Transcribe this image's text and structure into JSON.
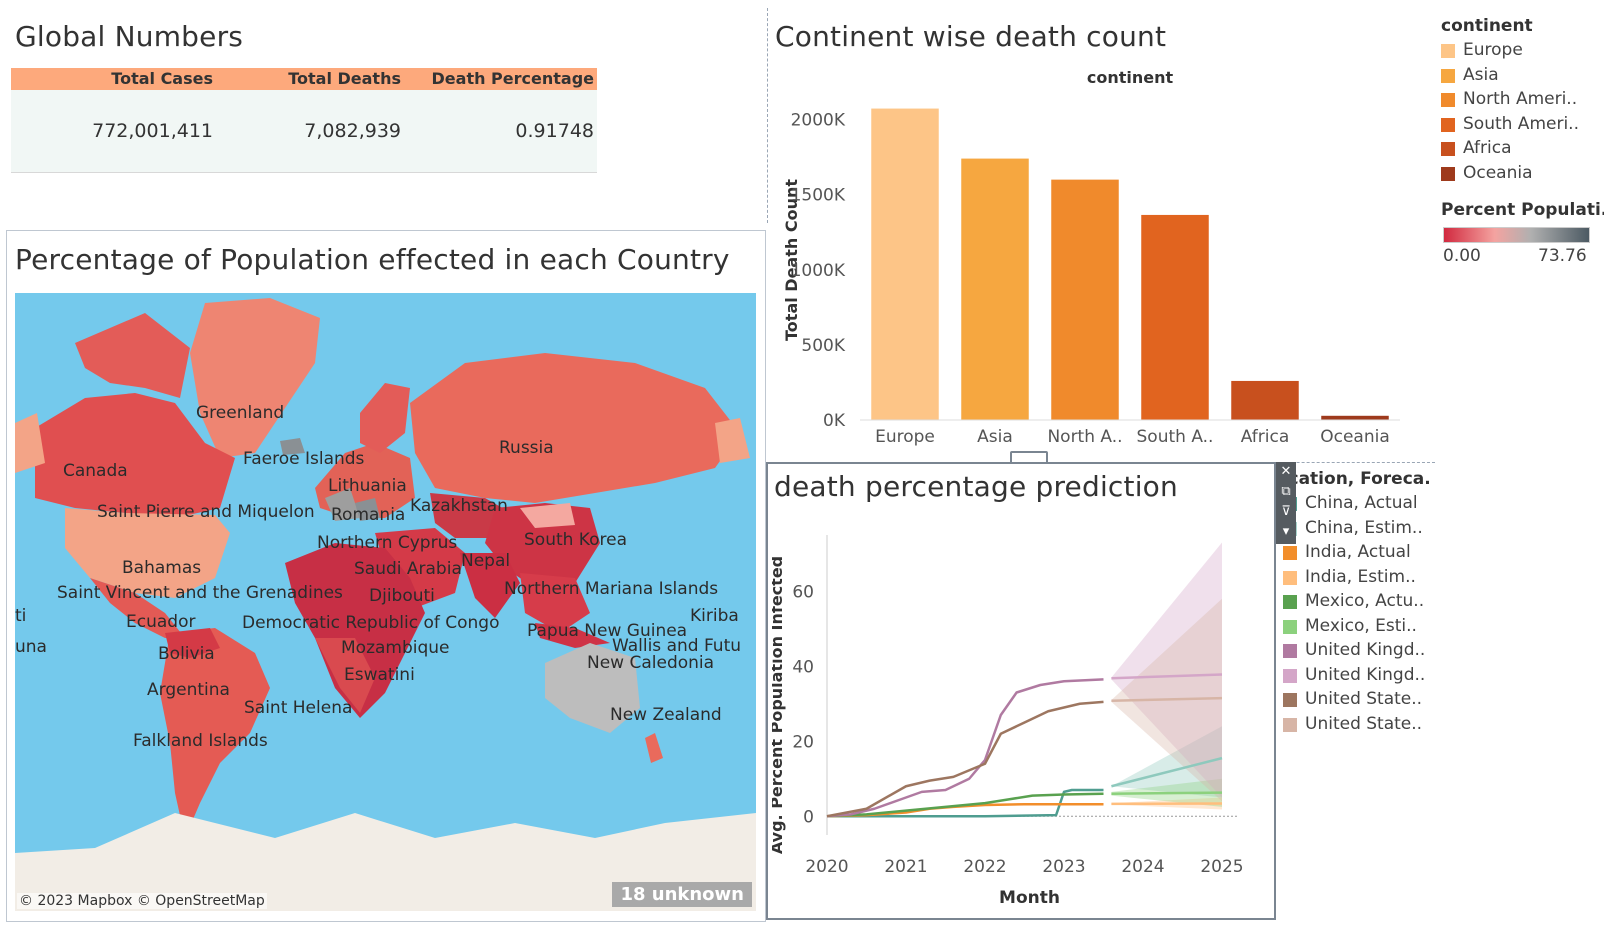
{
  "global_numbers": {
    "title": "Global Numbers",
    "headers": [
      "Total Cases",
      "Total Deaths",
      "Death Percentage"
    ],
    "values": [
      "772,001,411",
      "7,082,939",
      "0.91748"
    ],
    "header_color": "#fda97c"
  },
  "map_panel": {
    "title": "Percentage of Population effected in each Country",
    "attribution": "© 2023 Mapbox © OpenStreetMap",
    "unknown_badge": "18 unknown",
    "labels": [
      "Greenland",
      "Canada",
      "Faeroe Islands",
      "Lithuania",
      "Russia",
      "Romania",
      "Kazakhstan",
      "Saint Pierre and Miquelon",
      "Northern Cyprus",
      "South Korea",
      "Nepal",
      "Saudi Arabia",
      "Bahamas",
      "Saint Vincent and the Grenadines",
      "Djibouti",
      "Northern Mariana Islands",
      "ti",
      "Ecuador",
      "Democratic Republic of Congo",
      "Kiriba",
      "Papua New Guinea",
      "una",
      "Wallis and Futu",
      "Bolivia",
      "Mozambique",
      "New Caledonia",
      "Eswatini",
      "Argentina",
      "Saint Helena",
      "New Zealand",
      "Falkland Islands"
    ]
  },
  "bar_panel": {
    "title": "Continent wise death count"
  },
  "continent_legend": {
    "title": "continent",
    "items": [
      {
        "label": "Europe",
        "color": "#fdc587"
      },
      {
        "label": "Asia",
        "color": "#f6a740"
      },
      {
        "label": "North Ameri..",
        "color": "#f08a2c"
      },
      {
        "label": "South Ameri..",
        "color": "#e1641f"
      },
      {
        "label": "Africa",
        "color": "#c8501e"
      },
      {
        "label": "Oceania",
        "color": "#9e3a1c"
      }
    ]
  },
  "percent_legend": {
    "title": "Percent Populati..",
    "min": "0.00",
    "max": "73.76",
    "colors": [
      "#d1293f",
      "#f4a3a0",
      "#b0b0b0",
      "#4c5a63"
    ]
  },
  "forecast_legend": {
    "title": "Location, Foreca..",
    "items": [
      {
        "label": "China, Actual",
        "color": "#4f9d90"
      },
      {
        "label": "China, Estim..",
        "color": "#a8d4cd"
      },
      {
        "label": "India, Actual",
        "color": "#f28e2b"
      },
      {
        "label": "India, Estim..",
        "color": "#ffbe7d"
      },
      {
        "label": "Mexico, Actu..",
        "color": "#59a14f"
      },
      {
        "label": "Mexico, Esti..",
        "color": "#8cd17d"
      },
      {
        "label": "United Kingd..",
        "color": "#b07aa1"
      },
      {
        "label": "United Kingd..",
        "color": "#d4a6c8"
      },
      {
        "label": "United State..",
        "color": "#9d7660"
      },
      {
        "label": "United State..",
        "color": "#d7b5a6"
      }
    ]
  },
  "prediction_panel": {
    "title": "death percentage prediction"
  },
  "chart_data": [
    {
      "type": "bar",
      "title": "Continent wise death count",
      "xlabel": "continent",
      "ylabel": "Total Death Count",
      "categories": [
        "Europe",
        "Asia",
        "North A..",
        "South A..",
        "Africa",
        "Oceania"
      ],
      "values": [
        2073000,
        1740000,
        1600000,
        1365000,
        260000,
        28000
      ],
      "colors": [
        "#fdc587",
        "#f6a740",
        "#f08a2c",
        "#e1641f",
        "#c8501e",
        "#9e3a1c"
      ],
      "yticks": [
        0,
        500000,
        1000000,
        1500000,
        2000000
      ],
      "ytick_labels": [
        "0K",
        "500K",
        "1000K",
        "1500K",
        "2000K"
      ],
      "ylim": [
        0,
        2130000
      ],
      "grid": false
    },
    {
      "type": "line",
      "title": "death percentage prediction",
      "xlabel": "Month",
      "ylabel": "Avg. Percent Population Infected",
      "xticks": [
        2020,
        2021,
        2022,
        2023,
        2024,
        2025
      ],
      "yticks": [
        0,
        20,
        40,
        60
      ],
      "xlim": [
        2020,
        2025
      ],
      "ylim": [
        -5,
        75
      ],
      "series": [
        {
          "name": "China, Actual",
          "color": "#4f9d90",
          "x": [
            2020,
            2021,
            2022,
            2022.9,
            2023.0,
            2023.1,
            2023.5
          ],
          "y": [
            0,
            0,
            0,
            0.3,
            6.5,
            7,
            7
          ]
        },
        {
          "name": "China, Estim..",
          "color": "#8ec9bd",
          "x": [
            2023.6,
            2025
          ],
          "y": [
            8,
            15.5
          ],
          "band_upper": [
            8,
            24
          ],
          "band_lower": [
            8,
            5
          ]
        },
        {
          "name": "India, Actual",
          "color": "#f28e2b",
          "x": [
            2020,
            2020.5,
            2021,
            2021.3,
            2021.6,
            2022,
            2022.5,
            2023,
            2023.5
          ],
          "y": [
            0,
            0.3,
            1,
            2,
            2.5,
            3,
            3.2,
            3.2,
            3.2
          ]
        },
        {
          "name": "India, Estim..",
          "color": "#ffbe7d",
          "x": [
            2023.6,
            2025
          ],
          "y": [
            3.3,
            3.4
          ],
          "band_upper": [
            3.5,
            5
          ],
          "band_lower": [
            3.1,
            1.8
          ]
        },
        {
          "name": "Mexico, Actu..",
          "color": "#59a14f",
          "x": [
            2020,
            2020.5,
            2021,
            2021.5,
            2022,
            2022.3,
            2022.6,
            2023,
            2023.5
          ],
          "y": [
            0,
            0.5,
            1.5,
            2.5,
            3.5,
            4.5,
            5.5,
            5.8,
            6
          ]
        },
        {
          "name": "Mexico, Esti..",
          "color": "#8cd17d",
          "x": [
            2023.6,
            2025
          ],
          "y": [
            6,
            6.3
          ],
          "band_upper": [
            6.5,
            10
          ],
          "band_lower": [
            5.5,
            2.5
          ]
        },
        {
          "name": "United Kingd..",
          "color": "#b07aa1",
          "x": [
            2020,
            2020.3,
            2020.6,
            2021,
            2021.2,
            2021.5,
            2021.8,
            2022,
            2022.2,
            2022.4,
            2022.7,
            2023,
            2023.5
          ],
          "y": [
            0,
            0.5,
            2,
            5,
            6.5,
            7,
            10,
            15,
            27,
            33,
            35,
            36,
            36.5
          ]
        },
        {
          "name": "United Kingd..",
          "color": "#d4a6c8",
          "x": [
            2023.6,
            2025
          ],
          "y": [
            36.8,
            37.8
          ],
          "band_upper": [
            37,
            73
          ],
          "band_lower": [
            36.5,
            5
          ]
        },
        {
          "name": "United State..",
          "color": "#9d7660",
          "x": [
            2020,
            2020.5,
            2021,
            2021.3,
            2021.6,
            2022,
            2022.2,
            2022.5,
            2022.8,
            2023.2,
            2023.5
          ],
          "y": [
            0,
            2,
            8,
            9.5,
            10.5,
            14,
            22,
            25,
            28,
            30,
            30.5
          ]
        },
        {
          "name": "United State..",
          "color": "#d7b5a6",
          "x": [
            2023.6,
            2025
          ],
          "y": [
            30.8,
            31.5
          ],
          "band_upper": [
            31,
            58
          ],
          "band_lower": [
            30.5,
            4
          ]
        }
      ]
    }
  ]
}
